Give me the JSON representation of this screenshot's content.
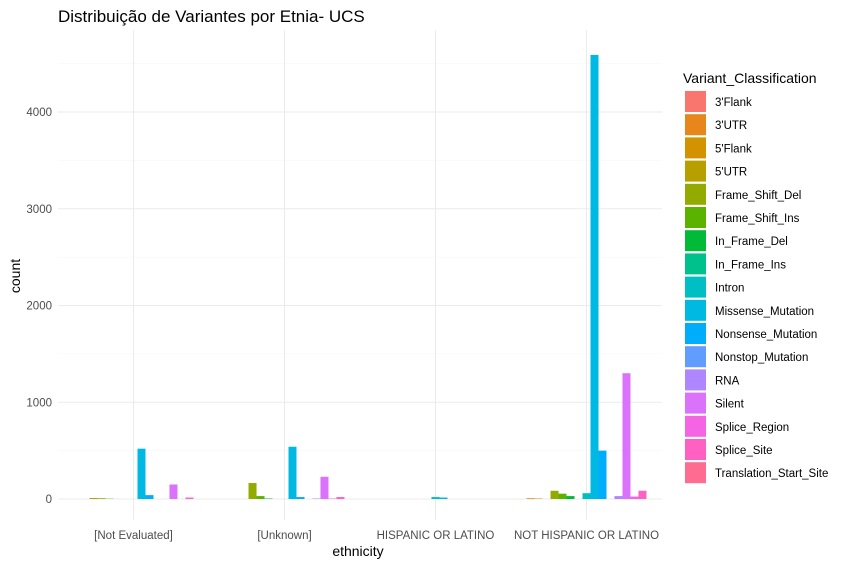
{
  "chart_data": {
    "type": "bar",
    "title": "Distribuição de Variantes por Etnia- UCS",
    "xlabel": "ethnicity",
    "ylabel": "count",
    "ylim": [
      0,
      4700
    ],
    "yticks": [
      0,
      1000,
      2000,
      3000,
      4000
    ],
    "grid": true,
    "legend_title": "Variant_Classification",
    "legend_position": "right",
    "categories": [
      "[Not Evaluated]",
      "[Unknown]",
      "HISPANIC OR LATINO",
      "NOT HISPANIC OR LATINO"
    ],
    "series": [
      {
        "name": "3'Flank",
        "color": "#F8766D",
        "values": [
          0,
          0,
          0,
          0
        ]
      },
      {
        "name": "3'UTR",
        "color": "#E7861B",
        "values": [
          0,
          0,
          0,
          8
        ]
      },
      {
        "name": "5'Flank",
        "color": "#D39200",
        "values": [
          0,
          0,
          0,
          5
        ]
      },
      {
        "name": "5'UTR",
        "color": "#B79F00",
        "values": [
          10,
          0,
          0,
          0
        ]
      },
      {
        "name": "Frame_Shift_Del",
        "color": "#93AA00",
        "values": [
          8,
          165,
          0,
          85
        ]
      },
      {
        "name": "Frame_Shift_Ins",
        "color": "#5BB300",
        "values": [
          3,
          30,
          0,
          55
        ]
      },
      {
        "name": "In_Frame_Del",
        "color": "#00BA38",
        "values": [
          0,
          5,
          0,
          30
        ]
      },
      {
        "name": "In_Frame_Ins",
        "color": "#00C08B",
        "values": [
          0,
          0,
          0,
          0
        ]
      },
      {
        "name": "Intron",
        "color": "#00BFC4",
        "values": [
          0,
          0,
          20,
          60
        ]
      },
      {
        "name": "Missense_Mutation",
        "color": "#00B9E3",
        "values": [
          520,
          540,
          15,
          4590
        ]
      },
      {
        "name": "Nonsense_Mutation",
        "color": "#00ADFA",
        "values": [
          40,
          20,
          0,
          500
        ]
      },
      {
        "name": "Nonstop_Mutation",
        "color": "#619CFF",
        "values": [
          0,
          0,
          0,
          0
        ]
      },
      {
        "name": "RNA",
        "color": "#AE87FF",
        "values": [
          0,
          5,
          0,
          30
        ]
      },
      {
        "name": "Silent",
        "color": "#DB72FB",
        "values": [
          150,
          230,
          0,
          1300
        ]
      },
      {
        "name": "Splice_Region",
        "color": "#F564E3",
        "values": [
          0,
          5,
          0,
          25
        ]
      },
      {
        "name": "Splice_Site",
        "color": "#FF61C3",
        "values": [
          15,
          20,
          0,
          85
        ]
      },
      {
        "name": "Translation_Start_Site",
        "color": "#FF6C91",
        "values": [
          0,
          0,
          0,
          0
        ]
      }
    ]
  }
}
